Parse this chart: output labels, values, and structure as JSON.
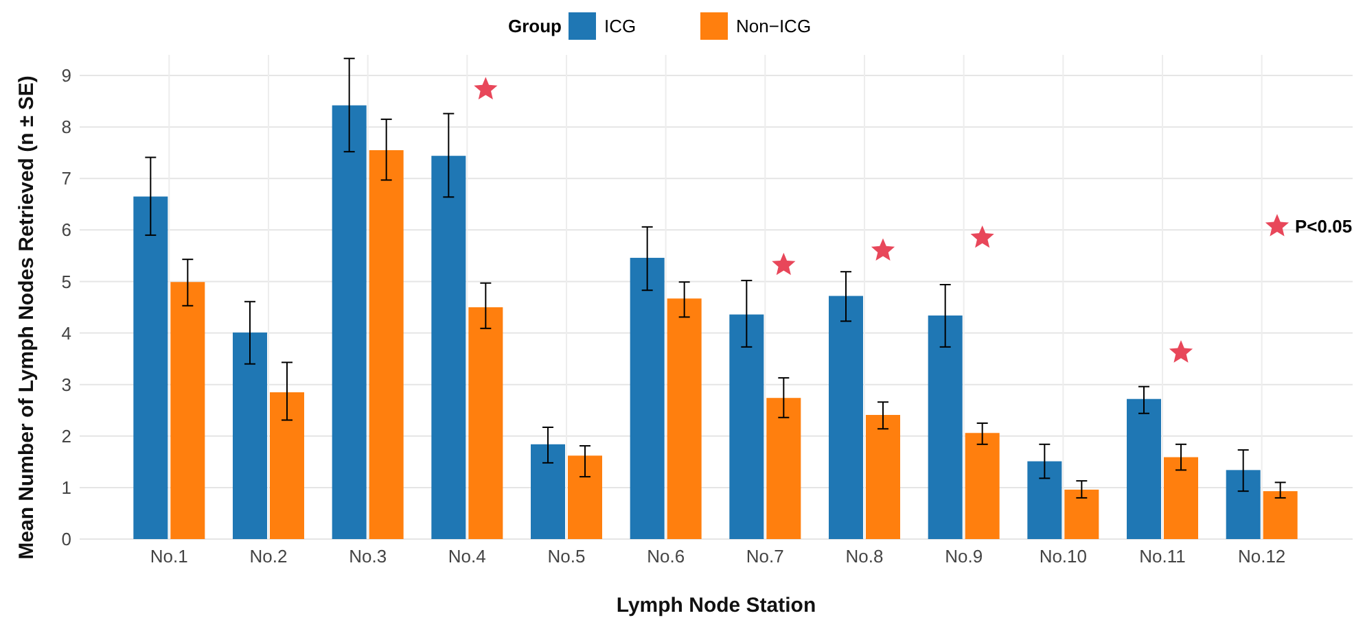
{
  "chart_data": {
    "type": "bar",
    "xlabel": "Lymph Node Station",
    "ylabel": "Mean Number of Lymph Nodes Retrieved (n ± SE)",
    "legend_title": "Group",
    "categories": [
      "No.1",
      "No.2",
      "No.3",
      "No.4",
      "No.5",
      "No.6",
      "No.7",
      "No.8",
      "No.9",
      "No.10",
      "No.11",
      "No.12"
    ],
    "series": [
      {
        "name": "ICG",
        "color": "#1f77b4",
        "values": [
          6.65,
          4.01,
          8.42,
          7.44,
          1.84,
          5.46,
          4.36,
          4.72,
          4.34,
          1.51,
          2.72,
          1.34
        ],
        "errors": [
          [
            5.9,
            7.41
          ],
          [
            3.4,
            4.61
          ],
          [
            7.52,
            9.33
          ],
          [
            6.64,
            8.26
          ],
          [
            1.48,
            2.17
          ],
          [
            4.83,
            6.06
          ],
          [
            3.73,
            5.02
          ],
          [
            4.23,
            5.19
          ],
          [
            3.73,
            4.94
          ],
          [
            1.18,
            1.84
          ],
          [
            2.44,
            2.96
          ],
          [
            0.93,
            1.73
          ]
        ]
      },
      {
        "name": "Non−ICG",
        "color": "#ff7f0e",
        "values": [
          4.99,
          2.85,
          7.55,
          4.5,
          1.62,
          4.67,
          2.74,
          2.41,
          2.06,
          0.96,
          1.59,
          0.93
        ],
        "errors": [
          [
            4.53,
            5.43
          ],
          [
            2.31,
            3.43
          ],
          [
            6.97,
            8.15
          ],
          [
            4.09,
            4.97
          ],
          [
            1.21,
            1.81
          ],
          [
            4.31,
            4.99
          ],
          [
            2.36,
            3.13
          ],
          [
            2.14,
            2.66
          ],
          [
            1.84,
            2.25
          ],
          [
            0.8,
            1.13
          ],
          [
            1.34,
            1.84
          ],
          [
            0.8,
            1.1
          ]
        ]
      },
      {
        "type": "scatter",
        "name": "P<0.05",
        "color": "#e8475a",
        "marker": "star",
        "x": [
          "No.4",
          "No.7",
          "No.8",
          "No.9",
          "No.11"
        ],
        "values": [
          8.73,
          5.32,
          5.6,
          5.85,
          3.62
        ]
      }
    ],
    "ylim": [
      0,
      9.4
    ],
    "yticks": [
      0,
      1,
      2,
      3,
      4,
      5,
      6,
      7,
      8,
      9
    ],
    "grid": true,
    "legend": "top"
  }
}
